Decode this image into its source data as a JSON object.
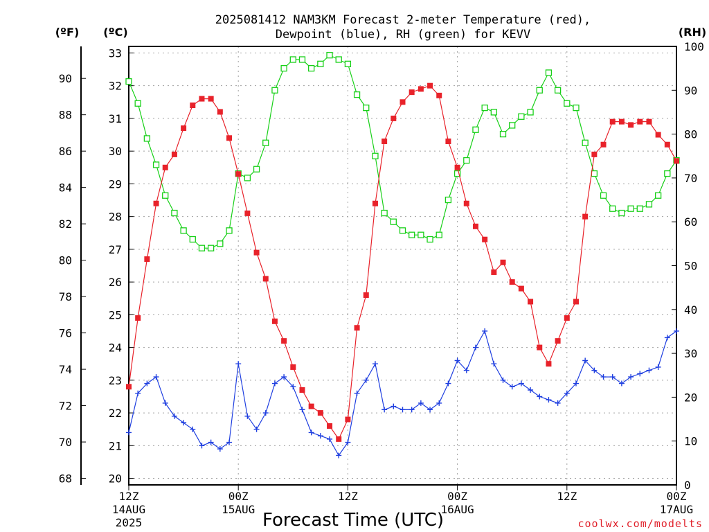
{
  "chart_data": {
    "type": "line",
    "title_line1": "2025081412 NAM3KM Forecast 2-meter Temperature (red),",
    "title_line2": "Dewpoint (blue), RH (green) for KEVV",
    "left_unit_f": "(ºF)",
    "left_unit_c": "(ºC)",
    "right_unit": "(RH)",
    "xlabel": "Forecast Time (UTC)",
    "credit": "coolwx.com/modelts",
    "x_ticks": [
      {
        "hour": 0,
        "lines": [
          "12Z",
          "14AUG",
          "2025"
        ]
      },
      {
        "hour": 12,
        "lines": [
          "00Z",
          "15AUG"
        ]
      },
      {
        "hour": 24,
        "lines": [
          "12Z"
        ]
      },
      {
        "hour": 36,
        "lines": [
          "00Z",
          "16AUG"
        ]
      },
      {
        "hour": 48,
        "lines": [
          "12Z"
        ]
      },
      {
        "hour": 60,
        "lines": [
          "00Z",
          "17AUG"
        ]
      }
    ],
    "x_range": [
      0,
      60
    ],
    "x_unit": "forecast hour",
    "celsius_range": [
      19.8,
      33.2
    ],
    "celsius_ticks": [
      20,
      21,
      22,
      23,
      24,
      25,
      26,
      27,
      28,
      29,
      30,
      31,
      32,
      33
    ],
    "fahrenheit_ticks": [
      68,
      70,
      72,
      74,
      76,
      78,
      80,
      82,
      84,
      86,
      88,
      90
    ],
    "rh_range": [
      0,
      100
    ],
    "rh_ticks": [
      0,
      10,
      20,
      30,
      40,
      50,
      60,
      70,
      80,
      90,
      100
    ],
    "grid": true,
    "colors": {
      "temperature": "#e8222a",
      "dewpoint": "#1f3fe0",
      "rh": "#18d018"
    },
    "series": [
      {
        "key": "temperature",
        "axis": "celsius",
        "marker": "filled-square",
        "values": [
          22.8,
          24.9,
          26.7,
          28.4,
          29.5,
          29.9,
          30.7,
          31.4,
          31.6,
          31.6,
          31.2,
          30.4,
          29.3,
          28.1,
          26.9,
          26.1,
          24.8,
          24.2,
          23.4,
          22.7,
          22.2,
          22.0,
          21.6,
          21.2,
          21.8,
          24.6,
          25.6,
          28.4,
          30.3,
          31.0,
          31.5,
          31.8,
          31.9,
          32.0,
          31.7,
          30.3,
          29.5,
          28.4,
          27.7,
          27.3,
          26.3,
          26.6,
          26.0,
          25.8,
          25.4,
          24.0,
          23.5,
          24.2,
          24.9,
          25.4,
          28.0,
          29.9,
          30.2,
          30.9,
          30.9,
          30.8,
          30.9,
          30.9,
          30.5,
          30.2,
          29.7
        ]
      },
      {
        "key": "dewpoint",
        "axis": "celsius",
        "marker": "plus",
        "values": [
          21.4,
          22.6,
          22.9,
          23.1,
          22.3,
          21.9,
          21.7,
          21.5,
          21.0,
          21.1,
          20.9,
          21.1,
          23.5,
          21.9,
          21.5,
          22.0,
          22.9,
          23.1,
          22.8,
          22.1,
          21.4,
          21.3,
          21.2,
          20.7,
          21.1,
          22.6,
          23.0,
          23.5,
          22.1,
          22.2,
          22.1,
          22.1,
          22.3,
          22.1,
          22.3,
          22.9,
          23.6,
          23.3,
          24.0,
          24.5,
          23.5,
          23.0,
          22.8,
          22.9,
          22.7,
          22.5,
          22.4,
          22.3,
          22.6,
          22.9,
          23.6,
          23.3,
          23.1,
          23.1,
          22.9,
          23.1,
          23.2,
          23.3,
          23.4,
          24.3,
          24.5
        ]
      },
      {
        "key": "rh",
        "axis": "rh",
        "marker": "open-square",
        "values": [
          92,
          87,
          79,
          73,
          66,
          62,
          58,
          56,
          54,
          54,
          55,
          58,
          71,
          70,
          72,
          78,
          90,
          95,
          97,
          97,
          95,
          96,
          98,
          97,
          96,
          89,
          86,
          75,
          62,
          60,
          58,
          57,
          57,
          56,
          57,
          65,
          71,
          74,
          81,
          86,
          85,
          80,
          82,
          84,
          85,
          90,
          94,
          90,
          87,
          86,
          78,
          71,
          66,
          63,
          62,
          63,
          63,
          64,
          66,
          71,
          74
        ]
      }
    ]
  }
}
